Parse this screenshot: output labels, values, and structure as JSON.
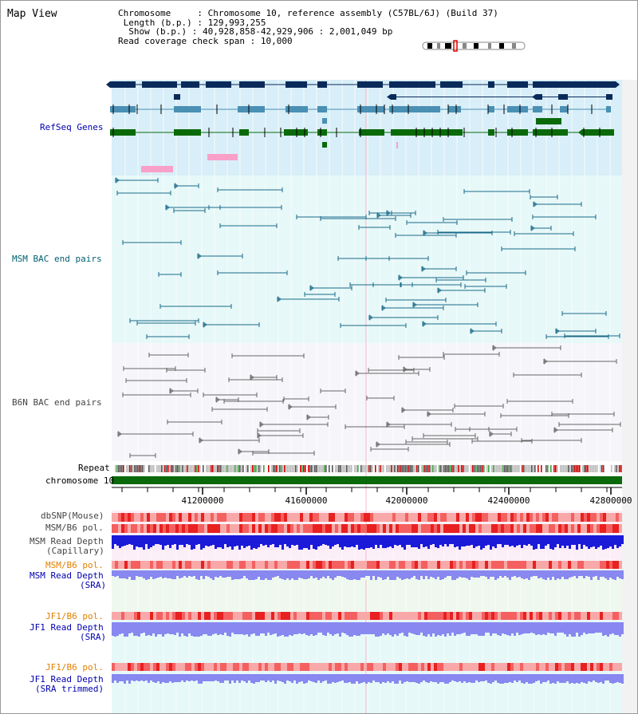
{
  "title": "Map View",
  "info": {
    "chromosome_label": "Chromosome",
    "chromosome_value": "Chromosome 10, reference assembly (C57BL/6J) (Build 37)",
    "length_label": "Length (b.p.)",
    "length_value": "129,993,255",
    "show_label": "Show (b.p.)",
    "show_value": "40,928,858-42,929,906 : 2,001,049 bp",
    "coverage_label": "Read coverage check span",
    "coverage_value": "10,000"
  },
  "tracks": {
    "refseq": "RefSeq Genes",
    "msm_bac": "MSM BAC end pairs",
    "b6n_bac": "B6N BAC end pairs",
    "repeat": "Repeat",
    "chromosome": "chromosome 10",
    "dbsnp": "dbSNP(Mouse)",
    "msm_b6_pol": "MSM/B6 pol.",
    "msm_depth_cap_1": "MSM Read Depth",
    "msm_depth_cap_2": "(Capillary)",
    "msm_b6_pol_2": "MSM/B6 pol.",
    "msm_depth_sra_1": "MSM Read Depth",
    "msm_depth_sra_2": "(SRA)",
    "jf1_b6_pol": "JF1/B6 pol.",
    "jf1_depth_sra_1": "JF1 Read Depth",
    "jf1_depth_sra_2": "(SRA)",
    "jf1_b6_pol_2": "JF1/B6 pol.",
    "jf1_depth_trim_1": "JF1 Read Depth",
    "jf1_depth_trim_2": "(SRA trimmed)"
  },
  "axis": {
    "ticks": [
      "41200000",
      "41600000",
      "42000000",
      "42400000",
      "42800000"
    ]
  },
  "colors": {
    "refseq_bg": "#d8eef8",
    "msm_bg": "#e6f8f8",
    "b6n_bg": "#f6f6fa",
    "gene_dark": "#0a2a5a",
    "gene_mid": "#4a90b4",
    "gene_green": "#0a6a0a",
    "gene_pink": "#f8a0c8",
    "bac_msm": "#1a6a8a",
    "bac_b6n": "#666666",
    "chrom_bar": "#0a6a0a",
    "depth_dark": "#1a1ad8",
    "depth_light": "#8888f0",
    "label_blue": "#0000b0",
    "label_teal": "#006070",
    "label_gray": "#444444",
    "label_orange": "#e08000"
  }
}
